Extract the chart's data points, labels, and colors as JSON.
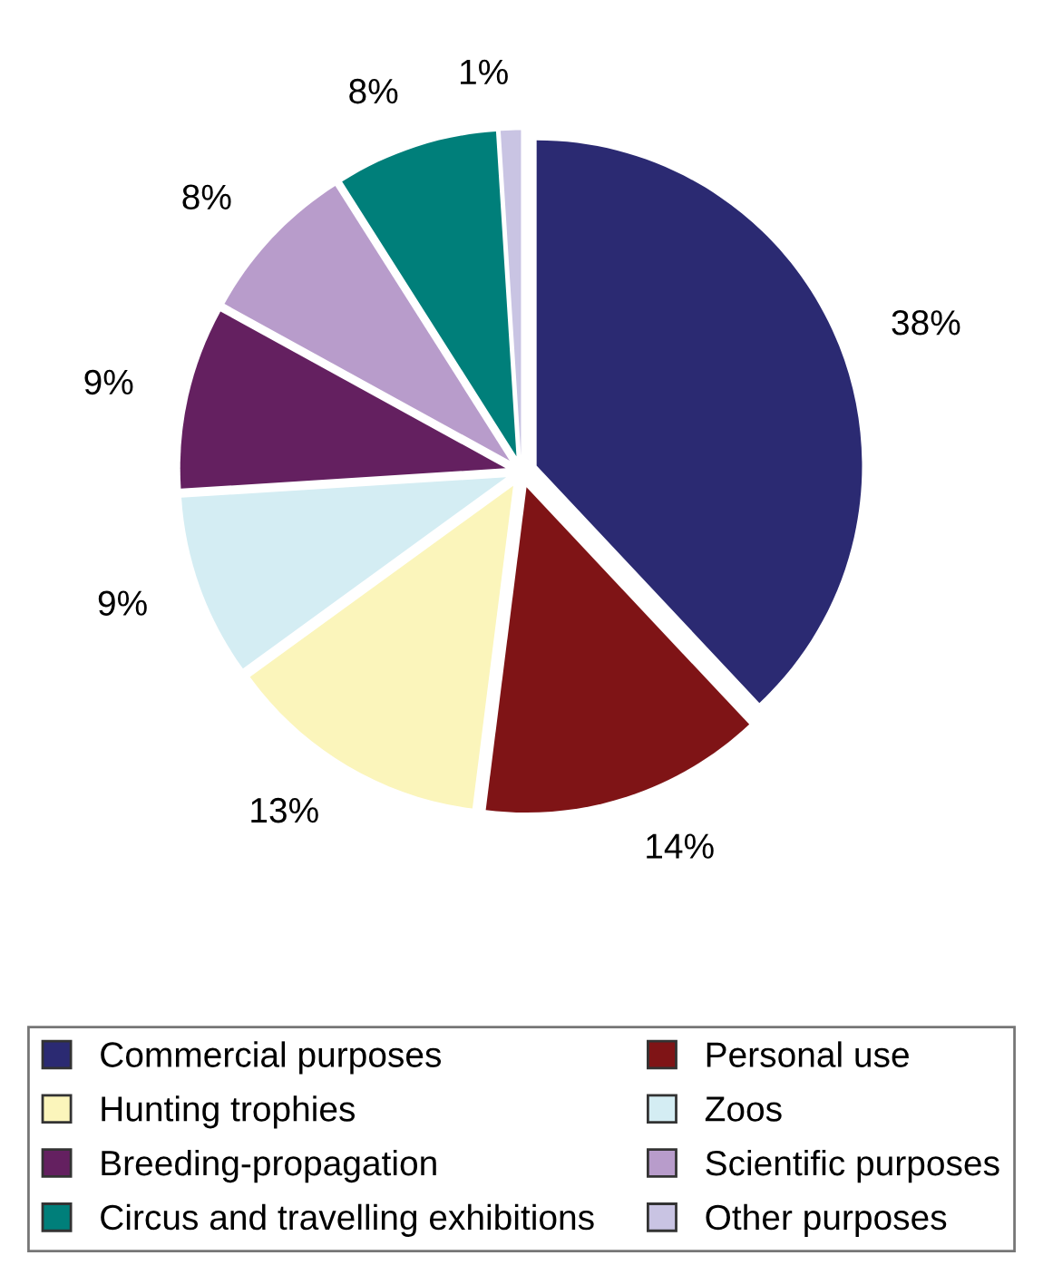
{
  "chart_data": {
    "type": "pie",
    "categories": [
      "Commercial purposes",
      "Personal use",
      "Hunting trophies",
      "Zoos",
      "Breeding-propagation",
      "Scientific purposes",
      "Circus and travelling exhibitions",
      "Other purposes"
    ],
    "values": [
      38,
      14,
      13,
      9,
      9,
      8,
      8,
      1
    ],
    "value_labels": [
      "38%",
      "14%",
      "13%",
      "9%",
      "9%",
      "8%",
      "8%",
      "1%"
    ],
    "colors": [
      "#2b2a72",
      "#7f1416",
      "#fbf5bb",
      "#d4edf3",
      "#642060",
      "#b89ccb",
      "#007f7a",
      "#c9c4e3"
    ],
    "legend": "bottom"
  }
}
